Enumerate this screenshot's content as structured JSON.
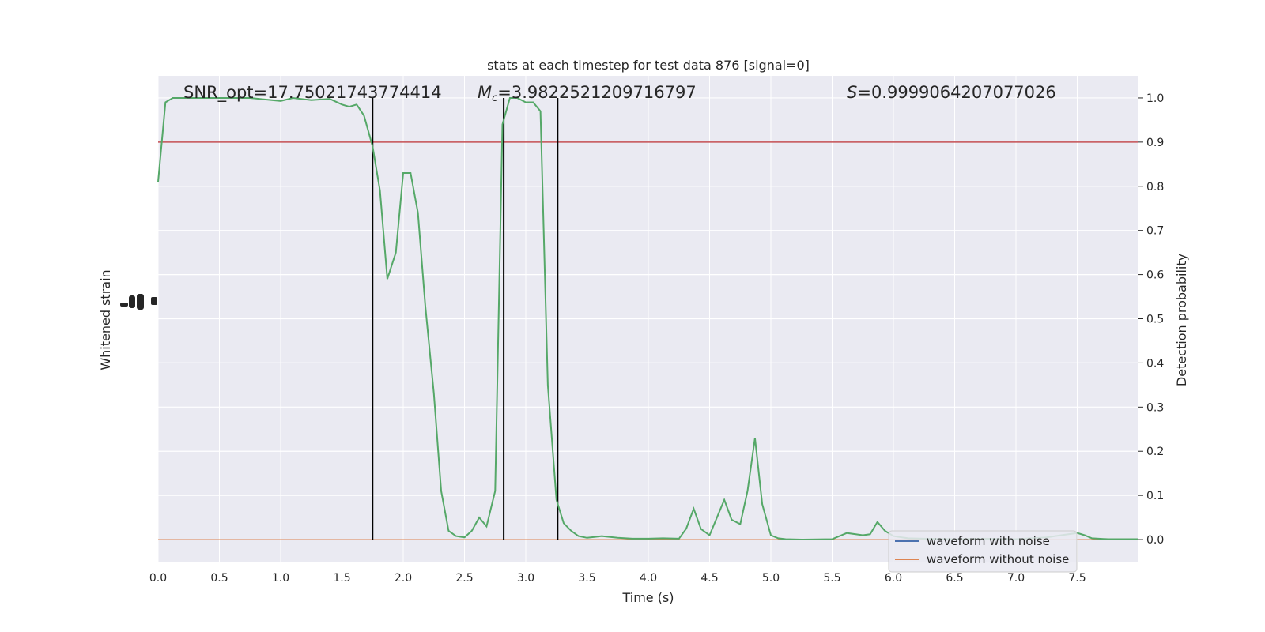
{
  "chart_data": {
    "type": "line",
    "title": "stats at each timestep for test data 876 [signal=0]",
    "xlabel": "Time (s)",
    "ylabel_left": "Whitened strain",
    "ylabel_right": "Detection probability",
    "xlim": [
      0.0,
      8.0
    ],
    "ylim_right": [
      -0.05,
      1.05
    ],
    "x_ticks": [
      "0.0",
      "0.5",
      "1.0",
      "1.5",
      "2.0",
      "2.5",
      "3.0",
      "3.5",
      "4.0",
      "4.5",
      "5.0",
      "5.5",
      "6.0",
      "6.5",
      "7.0",
      "7.5"
    ],
    "y_right_ticks": [
      "0.0",
      "0.1",
      "0.2",
      "0.3",
      "0.4",
      "0.5",
      "0.6",
      "0.7",
      "0.8",
      "0.9",
      "1.0"
    ],
    "annotations": {
      "snr": "SNR_opt=17.75021743774414",
      "mc_symbol": "M",
      "mc_sub": "c",
      "mc_value": "=3.9822521209716797",
      "s_symbol": "S",
      "s_value": "=0.9999064207077026"
    },
    "threshold": 0.9,
    "vertical_lines": [
      1.75,
      2.82,
      3.26
    ],
    "legend": {
      "placement": "lower-right",
      "entries": [
        {
          "label": "waveform with noise",
          "color": "#4c72b0"
        },
        {
          "label": "waveform without noise",
          "color": "#dd8452"
        }
      ]
    },
    "colors": {
      "background": "#eaeaf2",
      "grid": "#ffffff",
      "noise_waveform": "#dd8452",
      "probability": "#55a868",
      "threshold": "#c44e52",
      "vlines": "#000000"
    },
    "series": [
      {
        "name": "Detection probability",
        "x": [
          0.0,
          0.06,
          0.12,
          0.25,
          0.5,
          0.75,
          1.0,
          1.1,
          1.25,
          1.4,
          1.5,
          1.56,
          1.62,
          1.68,
          1.75,
          1.81,
          1.87,
          1.94,
          2.0,
          2.06,
          2.12,
          2.18,
          2.25,
          2.31,
          2.37,
          2.43,
          2.5,
          2.56,
          2.62,
          2.68,
          2.75,
          2.81,
          2.87,
          2.93,
          3.0,
          3.06,
          3.12,
          3.18,
          3.25,
          3.31,
          3.37,
          3.43,
          3.5,
          3.56,
          3.62,
          3.75,
          3.87,
          4.0,
          4.12,
          4.25,
          4.31,
          4.37,
          4.43,
          4.5,
          4.56,
          4.62,
          4.68,
          4.75,
          4.81,
          4.87,
          4.93,
          5.0,
          5.06,
          5.12,
          5.25,
          5.5,
          5.62,
          5.75,
          5.81,
          5.87,
          5.93,
          6.0,
          6.12,
          6.25,
          6.5,
          6.75,
          7.0,
          7.25,
          7.37,
          7.5,
          7.56,
          7.62,
          7.75,
          8.0
        ],
        "y": [
          0.81,
          0.99,
          1.0,
          1.0,
          1.0,
          1.0,
          0.993,
          1.0,
          0.995,
          0.998,
          0.985,
          0.98,
          0.985,
          0.96,
          0.89,
          0.79,
          0.59,
          0.65,
          0.83,
          0.83,
          0.74,
          0.53,
          0.33,
          0.11,
          0.02,
          0.008,
          0.005,
          0.02,
          0.05,
          0.03,
          0.11,
          0.94,
          1.0,
          1.0,
          0.99,
          0.99,
          0.97,
          0.35,
          0.09,
          0.037,
          0.02,
          0.008,
          0.004,
          0.006,
          0.008,
          0.004,
          0.002,
          0.002,
          0.003,
          0.002,
          0.025,
          0.07,
          0.024,
          0.01,
          0.05,
          0.09,
          0.045,
          0.035,
          0.11,
          0.23,
          0.08,
          0.01,
          0.003,
          0.001,
          0.0,
          0.001,
          0.015,
          0.01,
          0.012,
          0.04,
          0.02,
          0.008,
          0.003,
          0.002,
          0.001,
          0.002,
          0.001,
          0.005,
          0.01,
          0.015,
          0.01,
          0.003,
          0.001,
          0.001
        ]
      }
    ]
  }
}
